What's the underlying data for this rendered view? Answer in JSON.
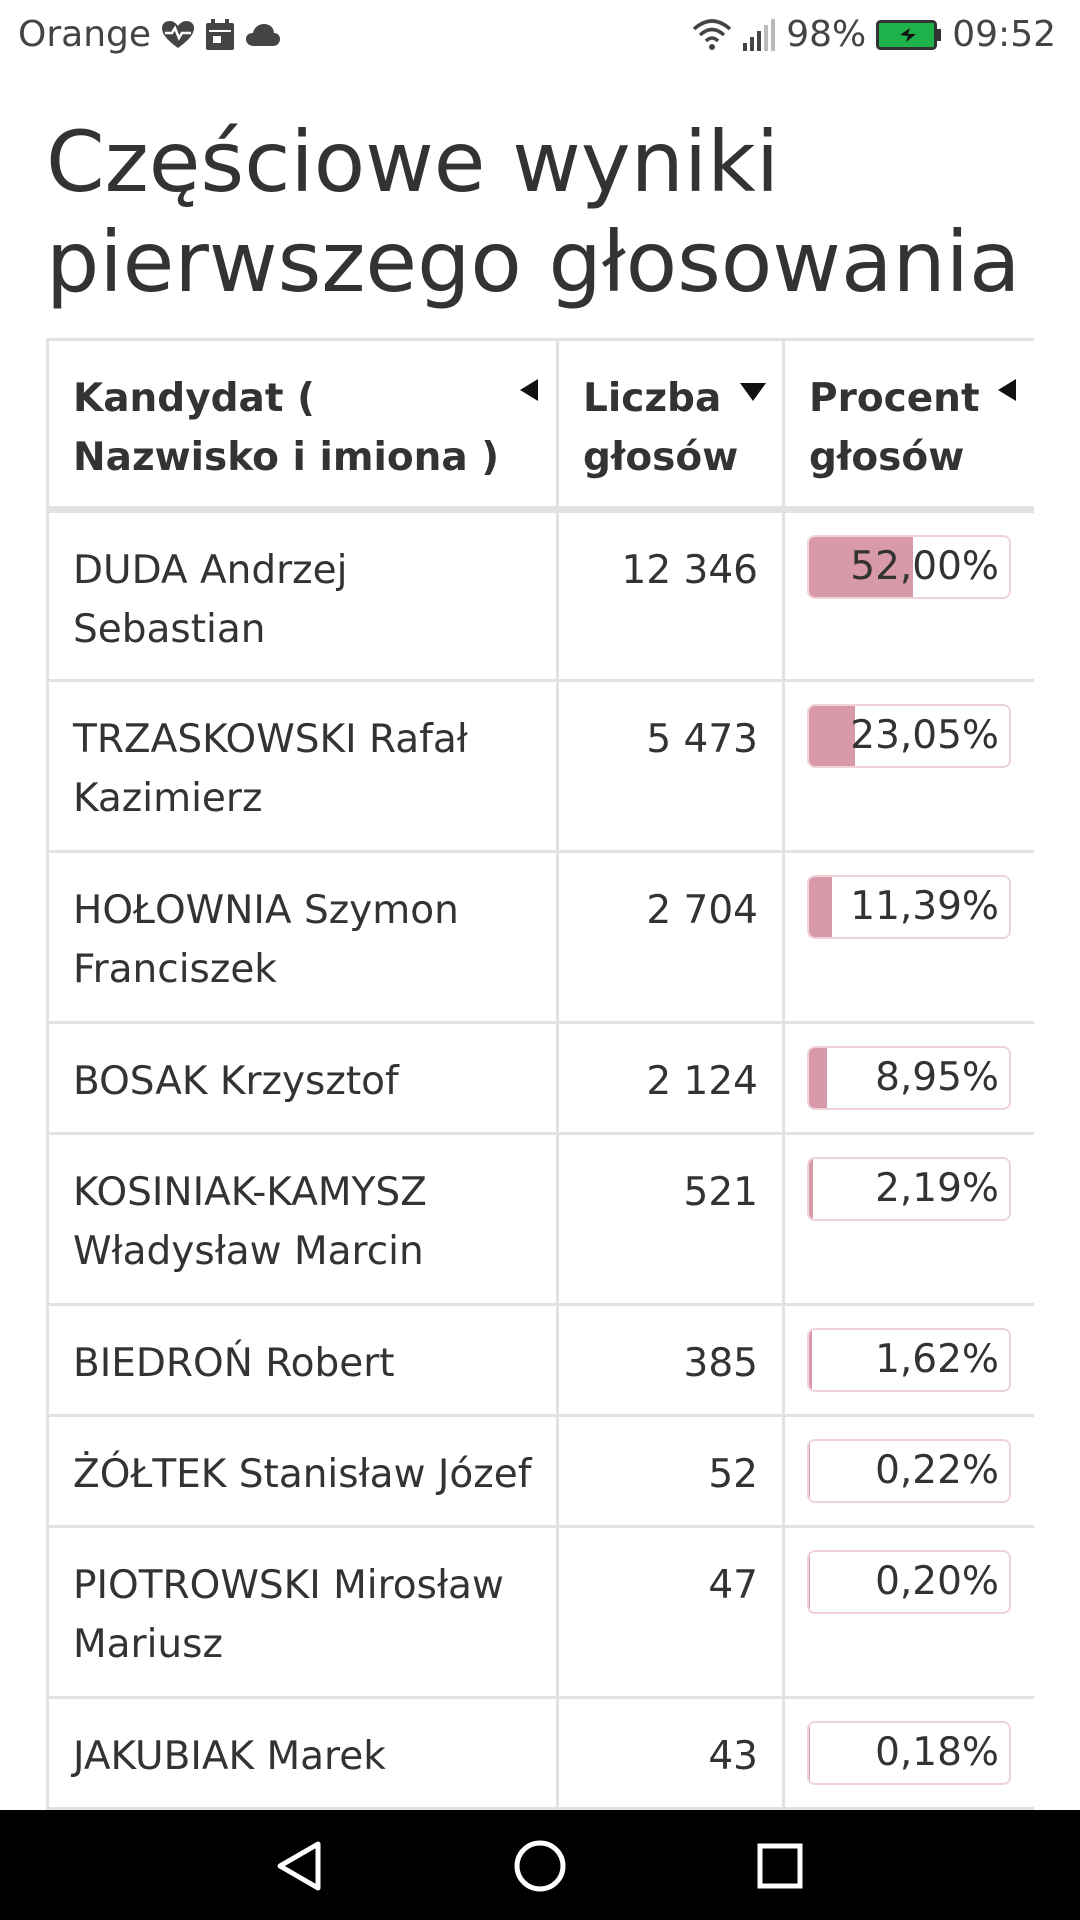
{
  "status_bar": {
    "carrier": "Orange",
    "battery": "98%",
    "time": "09:52",
    "icons_left": [
      "heart-rate-icon",
      "calendar-icon",
      "cloud-icon"
    ],
    "icons_right": [
      "wifi-icon",
      "signal-icon",
      "battery-icon"
    ]
  },
  "page": {
    "title": "Częściowe wyniki pierwszego głosowania"
  },
  "table": {
    "columns": [
      {
        "label": "Kandydat ( Nazwisko i imiona )",
        "sort": "left"
      },
      {
        "label": "Liczba głosów",
        "sort": "down"
      },
      {
        "label": "Procent głosów",
        "sort": "left"
      }
    ],
    "rows": [
      {
        "name": "DUDA Andrzej Sebastian",
        "votes": "12 346",
        "percent": "52,00%",
        "share": 52.0
      },
      {
        "name": "TRZASKOWSKI Rafał Kazimierz",
        "votes": "5 473",
        "percent": "23,05%",
        "share": 23.05
      },
      {
        "name": "HOŁOWNIA Szymon Franciszek",
        "votes": "2 704",
        "percent": "11,39%",
        "share": 11.39
      },
      {
        "name": "BOSAK Krzysztof",
        "votes": "2 124",
        "percent": "8,95%",
        "share": 8.95
      },
      {
        "name": "KOSINIAK-KAMYSZ Władysław Marcin",
        "votes": "521",
        "percent": "2,19%",
        "share": 2.19
      },
      {
        "name": "BIEDROŃ Robert",
        "votes": "385",
        "percent": "1,62%",
        "share": 1.62
      },
      {
        "name": "ŻÓŁTEK Stanisław Józef",
        "votes": "52",
        "percent": "0,22%",
        "share": 0.22
      },
      {
        "name": "PIOTROWSKI Mirosław Mariusz",
        "votes": "47",
        "percent": "0,20%",
        "share": 0.2
      },
      {
        "name": "JAKUBIAK Marek",
        "votes": "43",
        "percent": "0,18%",
        "share": 0.18
      }
    ]
  },
  "colors": {
    "bar_fill": "#d89aa9",
    "bar_border": "#f0d2da",
    "table_border": "#e2e2e2"
  },
  "nav_bar": {
    "icons": [
      "back-icon",
      "home-icon",
      "recents-icon"
    ]
  }
}
